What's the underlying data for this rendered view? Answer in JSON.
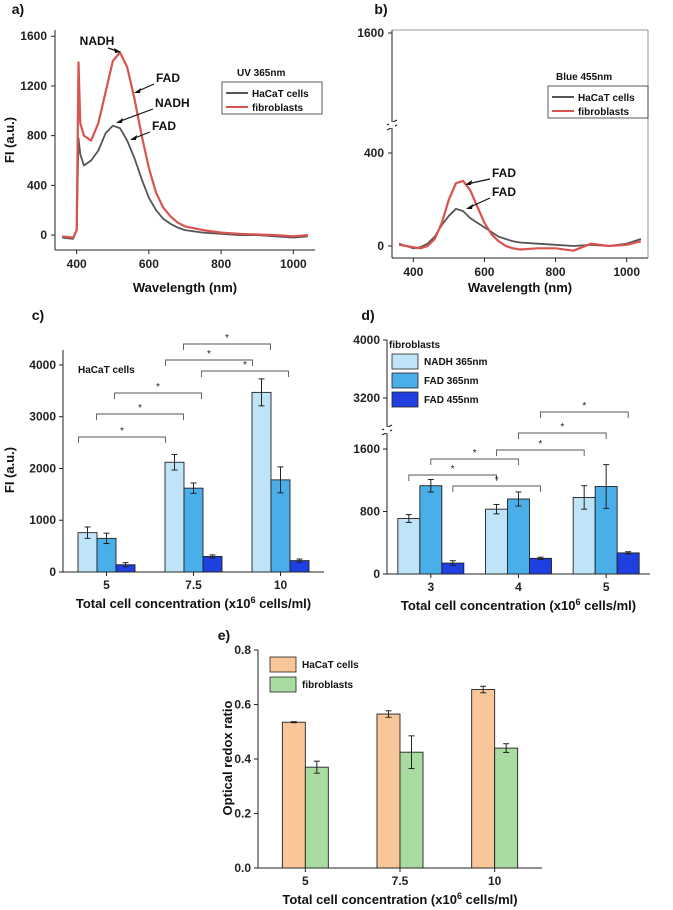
{
  "figure": {
    "colors": {
      "hacat_line": "#555555",
      "fibro_line": "#d9534f",
      "nadh365": "#bfe3f7",
      "fad365": "#4aaee8",
      "fad455": "#1f3fe0",
      "hacat_bar": "#f9c69a",
      "fibro_bar": "#a8dca0"
    }
  },
  "chart_data": [
    {
      "panel": "a)",
      "type": "line",
      "xlabel": "Wavelength (nm)",
      "ylabel": "FI (a.u.)",
      "xlim": [
        340,
        1060
      ],
      "ylim": [
        -120,
        1650
      ],
      "xticks": [
        "400",
        "600",
        "800",
        "1000"
      ],
      "yticks": [
        "0",
        "400",
        "800",
        "1200",
        "1600"
      ],
      "legend_title": "UV 365nm",
      "legend_pos": "top-right",
      "series": [
        {
          "name": "HaCaT cells",
          "color_key": "hacat_line",
          "x": [
            360,
            390,
            400,
            405,
            410,
            420,
            440,
            460,
            480,
            500,
            520,
            540,
            560,
            580,
            600,
            620,
            640,
            660,
            680,
            700,
            750,
            800,
            850,
            900,
            950,
            1000,
            1040
          ],
          "y": [
            -20,
            -30,
            40,
            780,
            650,
            560,
            600,
            680,
            820,
            880,
            860,
            760,
            620,
            450,
            300,
            200,
            130,
            90,
            60,
            40,
            20,
            10,
            0,
            0,
            -10,
            -20,
            -10
          ]
        },
        {
          "name": "fibroblasts",
          "color_key": "fibro_line",
          "x": [
            360,
            390,
            400,
            405,
            410,
            420,
            440,
            460,
            480,
            500,
            520,
            540,
            560,
            580,
            600,
            620,
            640,
            660,
            680,
            700,
            750,
            800,
            850,
            900,
            950,
            1000,
            1040
          ],
          "y": [
            -10,
            -20,
            40,
            1390,
            900,
            800,
            760,
            900,
            1150,
            1400,
            1470,
            1350,
            1100,
            800,
            540,
            340,
            220,
            150,
            100,
            70,
            40,
            20,
            10,
            5,
            0,
            -10,
            0
          ]
        }
      ],
      "annotations": [
        "NADH",
        "FAD",
        "NADH",
        "FAD"
      ]
    },
    {
      "panel": "b)",
      "type": "line",
      "xlabel": "Wavelength (nm)",
      "ylabel": "",
      "xlim": [
        340,
        1060
      ],
      "ylim": [
        -40,
        440
      ],
      "y_break": true,
      "xticks": [
        "400",
        "600",
        "800",
        "1000"
      ],
      "yticks": [
        "0",
        "400",
        "1600"
      ],
      "legend_title": "Blue 455nm",
      "legend_pos": "top-right",
      "series": [
        {
          "name": "HaCaT cells",
          "color_key": "hacat_line",
          "x": [
            360,
            380,
            400,
            420,
            440,
            460,
            480,
            500,
            520,
            540,
            560,
            580,
            600,
            620,
            640,
            660,
            680,
            700,
            750,
            800,
            850,
            900,
            950,
            1000,
            1040
          ],
          "y": [
            10,
            0,
            -10,
            -5,
            10,
            40,
            90,
            130,
            160,
            150,
            120,
            100,
            80,
            60,
            40,
            30,
            20,
            15,
            10,
            5,
            0,
            5,
            0,
            10,
            30
          ]
        },
        {
          "name": "fibroblasts",
          "color_key": "fibro_line",
          "x": [
            360,
            380,
            400,
            420,
            440,
            460,
            480,
            500,
            520,
            540,
            560,
            580,
            600,
            620,
            640,
            660,
            680,
            700,
            750,
            800,
            850,
            900,
            950,
            1000,
            1040
          ],
          "y": [
            5,
            0,
            -5,
            -10,
            0,
            30,
            100,
            200,
            270,
            280,
            240,
            170,
            100,
            50,
            20,
            0,
            -10,
            -15,
            -10,
            -10,
            -20,
            10,
            0,
            5,
            20
          ]
        }
      ],
      "annotations": [
        "FAD",
        "FAD"
      ]
    },
    {
      "panel": "c)",
      "type": "bar",
      "title": "HaCaT cells",
      "categories": [
        "5",
        "7.5",
        "10"
      ],
      "xlabel": "Total cell concentration (x10",
      "xlabel_sup": "6",
      "xlabel_end": " cells/ml)",
      "ylabel": "FI (a.u.)",
      "ylim": [
        0,
        4250
      ],
      "yticks": [
        "0",
        "1000",
        "2000",
        "3000",
        "4000"
      ],
      "series": [
        {
          "name": "NADH 365nm",
          "color_key": "nadh365",
          "values": [
            760,
            2120,
            3470
          ],
          "errors": [
            110,
            150,
            260
          ]
        },
        {
          "name": "FAD 365nm",
          "color_key": "fad365",
          "values": [
            650,
            1620,
            1780
          ],
          "errors": [
            100,
            100,
            250
          ]
        },
        {
          "name": "FAD 455nm",
          "color_key": "fad455",
          "values": [
            140,
            300,
            220
          ],
          "errors": [
            40,
            30,
            30
          ]
        }
      ],
      "significance": "*"
    },
    {
      "panel": "d)",
      "type": "bar",
      "legend_title": "fibroblasts",
      "legend_pos": "top-left",
      "categories": [
        "3",
        "4",
        "5"
      ],
      "xlabel": "Total cell concentration (x10",
      "xlabel_sup": "6",
      "xlabel_end": " cells/ml)",
      "ylabel": "",
      "ylim": [
        0,
        2000
      ],
      "y_break": true,
      "yticks": [
        "0",
        "800",
        "1600",
        "3200",
        "4000"
      ],
      "series": [
        {
          "name": "NADH 365nm",
          "color_key": "nadh365",
          "values": [
            710,
            830,
            980
          ],
          "errors": [
            50,
            60,
            150
          ]
        },
        {
          "name": "FAD 365nm",
          "color_key": "fad365",
          "values": [
            1130,
            960,
            1120
          ],
          "errors": [
            80,
            90,
            280
          ]
        },
        {
          "name": "FAD 455nm",
          "color_key": "fad455",
          "values": [
            140,
            200,
            270
          ],
          "errors": [
            30,
            15,
            15
          ]
        }
      ],
      "significance": "*"
    },
    {
      "panel": "e)",
      "type": "bar",
      "categories": [
        "5",
        "7.5",
        "10"
      ],
      "xlabel": "Total cell concentration (x10",
      "xlabel_sup": "6",
      "xlabel_end": " cells/ml)",
      "ylabel": "Optical redox ratio",
      "ylim": [
        0,
        0.8
      ],
      "yticks": [
        "0.0",
        "0.2",
        "0.4",
        "0.6",
        "0.8"
      ],
      "legend_pos": "top-left",
      "series": [
        {
          "name": "HaCaT cells",
          "color_key": "hacat_bar",
          "values": [
            0.535,
            0.565,
            0.655
          ],
          "errors": [
            0.002,
            0.012,
            0.012
          ]
        },
        {
          "name": "fibroblasts",
          "color_key": "fibro_bar",
          "values": [
            0.37,
            0.425,
            0.44
          ],
          "errors": [
            0.022,
            0.06,
            0.016
          ]
        }
      ]
    }
  ]
}
